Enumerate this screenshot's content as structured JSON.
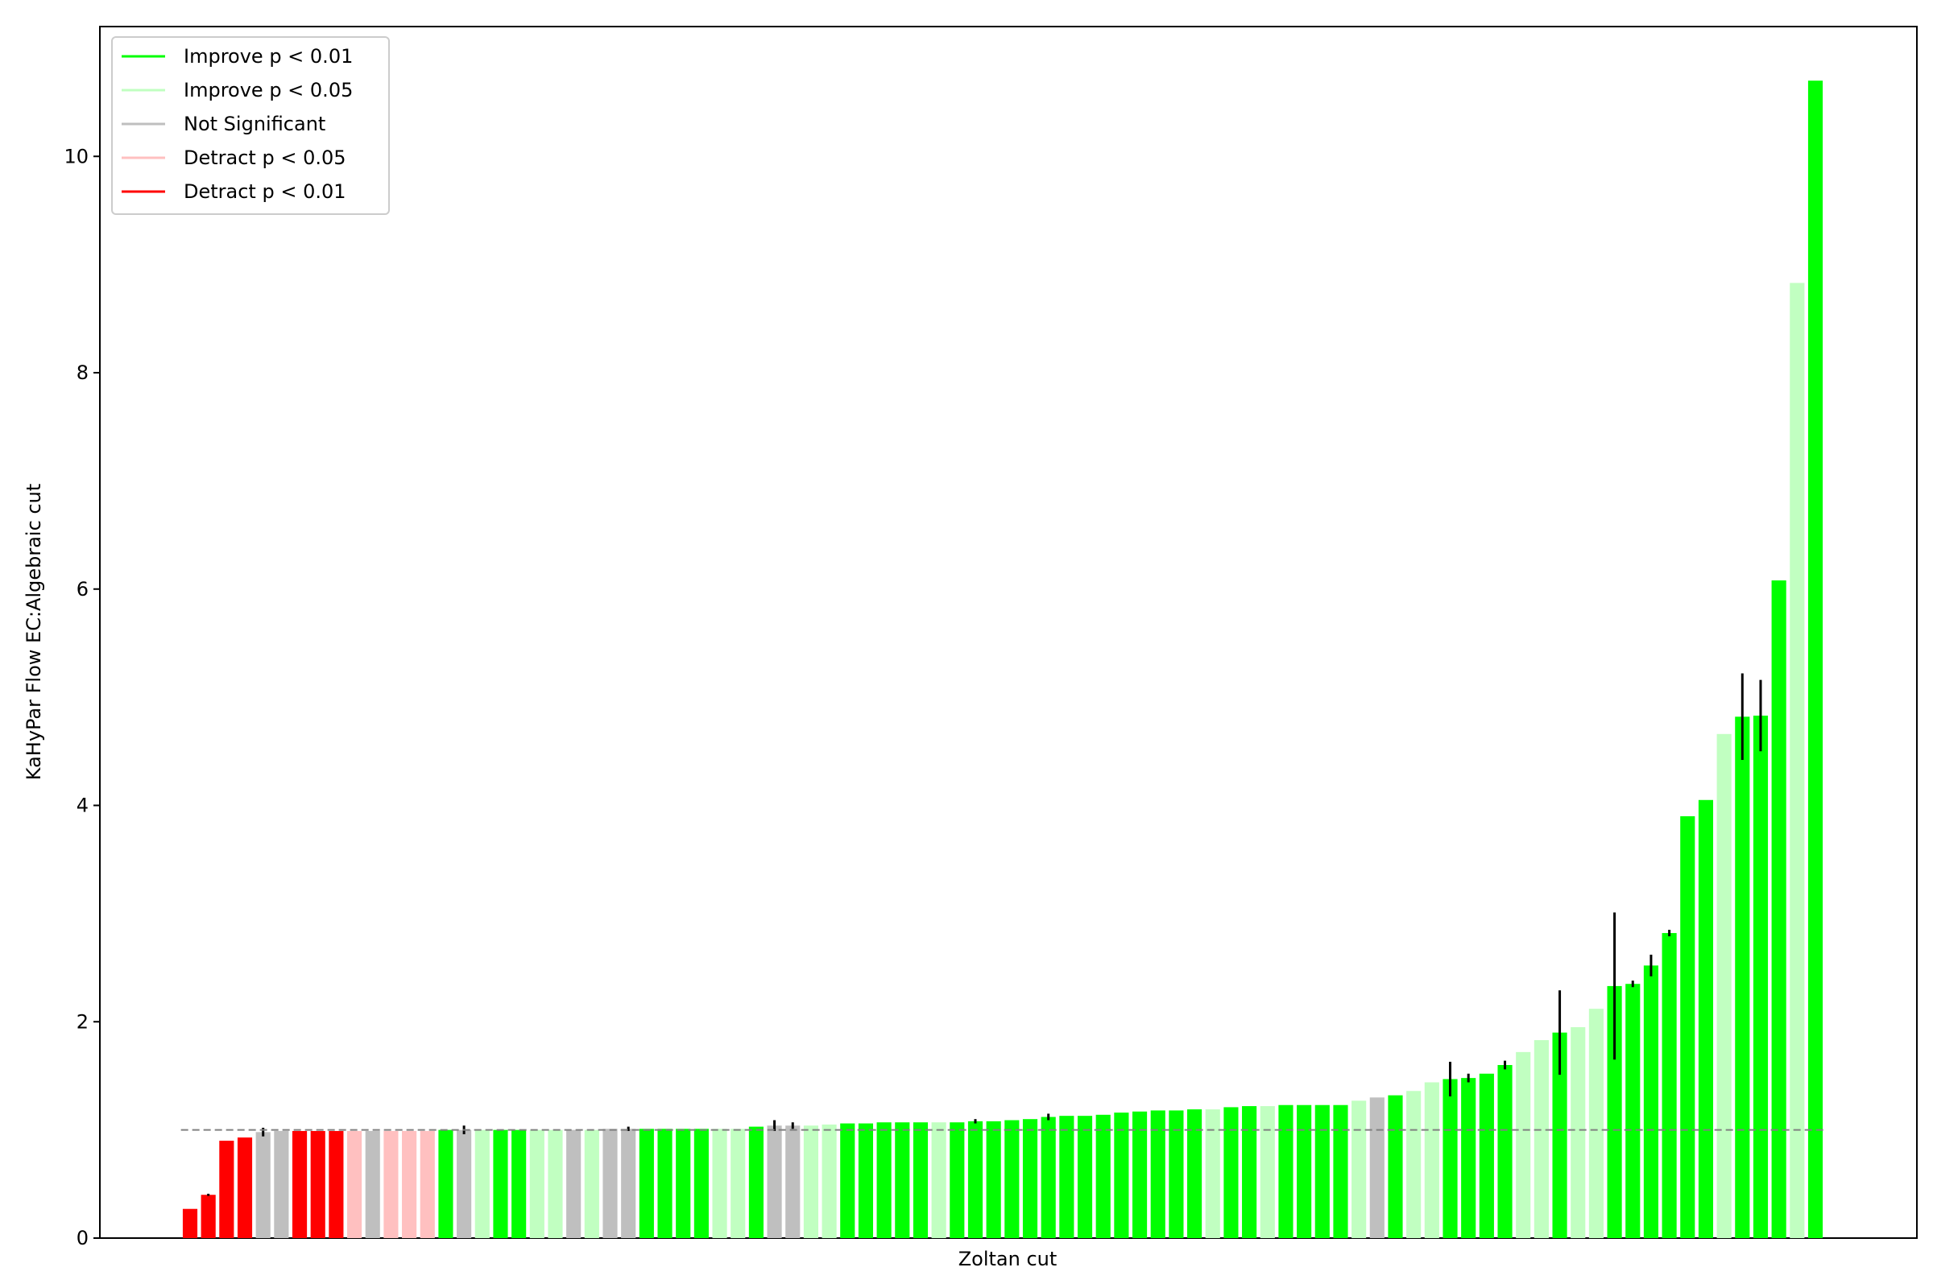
{
  "chart_data": {
    "type": "bar",
    "xlabel": "Zoltan cut",
    "ylabel": "KaHyPar Flow EC:Algebraic cut",
    "ylim": [
      0,
      11.2
    ],
    "yticks": [
      0,
      2,
      4,
      6,
      8,
      10
    ],
    "ytick_labels": [
      "0",
      "2",
      "4",
      "6",
      "8",
      "10"
    ],
    "reference_line": 1.0,
    "grid": false,
    "legend_position": "top-left",
    "legend": [
      {
        "key": "imp01",
        "label": "Improve p < 0.01",
        "color": "#00ff00"
      },
      {
        "key": "imp05",
        "label": "Improve p < 0.05",
        "color": "#c1ffc1"
      },
      {
        "key": "ns",
        "label": "Not Significant",
        "color": "#bfbfbf"
      },
      {
        "key": "det05",
        "label": "Detract p < 0.05",
        "color": "#ffc0c0"
      },
      {
        "key": "det01",
        "label": "Detract p < 0.01",
        "color": "#ff0000"
      }
    ],
    "bars": [
      {
        "v": 0.27,
        "c": "det01"
      },
      {
        "v": 0.4,
        "c": "det01",
        "e": 0.01
      },
      {
        "v": 0.9,
        "c": "det01"
      },
      {
        "v": 0.93,
        "c": "det01"
      },
      {
        "v": 0.98,
        "c": "ns",
        "e": 0.04
      },
      {
        "v": 0.99,
        "c": "ns"
      },
      {
        "v": 0.99,
        "c": "det01"
      },
      {
        "v": 0.99,
        "c": "det01"
      },
      {
        "v": 0.99,
        "c": "det01"
      },
      {
        "v": 0.99,
        "c": "det05"
      },
      {
        "v": 0.99,
        "c": "ns"
      },
      {
        "v": 0.99,
        "c": "det05"
      },
      {
        "v": 0.99,
        "c": "det05"
      },
      {
        "v": 0.99,
        "c": "det05"
      },
      {
        "v": 1.0,
        "c": "imp01"
      },
      {
        "v": 1.0,
        "c": "ns",
        "e": 0.04
      },
      {
        "v": 1.0,
        "c": "imp05"
      },
      {
        "v": 1.0,
        "c": "imp01"
      },
      {
        "v": 1.0,
        "c": "imp01"
      },
      {
        "v": 1.0,
        "c": "imp05"
      },
      {
        "v": 1.0,
        "c": "imp05"
      },
      {
        "v": 1.0,
        "c": "ns"
      },
      {
        "v": 1.0,
        "c": "imp05"
      },
      {
        "v": 1.01,
        "c": "ns"
      },
      {
        "v": 1.01,
        "c": "ns",
        "e": 0.02
      },
      {
        "v": 1.01,
        "c": "imp01"
      },
      {
        "v": 1.01,
        "c": "imp01"
      },
      {
        "v": 1.01,
        "c": "imp01"
      },
      {
        "v": 1.01,
        "c": "imp01"
      },
      {
        "v": 1.01,
        "c": "imp05"
      },
      {
        "v": 1.01,
        "c": "imp05"
      },
      {
        "v": 1.03,
        "c": "imp01"
      },
      {
        "v": 1.04,
        "c": "ns",
        "e": 0.05
      },
      {
        "v": 1.04,
        "c": "ns",
        "e": 0.03
      },
      {
        "v": 1.04,
        "c": "imp05"
      },
      {
        "v": 1.05,
        "c": "imp05"
      },
      {
        "v": 1.06,
        "c": "imp01"
      },
      {
        "v": 1.06,
        "c": "imp01"
      },
      {
        "v": 1.07,
        "c": "imp01"
      },
      {
        "v": 1.07,
        "c": "imp01"
      },
      {
        "v": 1.07,
        "c": "imp01"
      },
      {
        "v": 1.07,
        "c": "imp05"
      },
      {
        "v": 1.07,
        "c": "imp01"
      },
      {
        "v": 1.08,
        "c": "imp01",
        "e": 0.02
      },
      {
        "v": 1.08,
        "c": "imp01"
      },
      {
        "v": 1.09,
        "c": "imp01"
      },
      {
        "v": 1.1,
        "c": "imp01"
      },
      {
        "v": 1.12,
        "c": "imp01",
        "e": 0.03
      },
      {
        "v": 1.13,
        "c": "imp01"
      },
      {
        "v": 1.13,
        "c": "imp01"
      },
      {
        "v": 1.14,
        "c": "imp01"
      },
      {
        "v": 1.16,
        "c": "imp01"
      },
      {
        "v": 1.17,
        "c": "imp01"
      },
      {
        "v": 1.18,
        "c": "imp01"
      },
      {
        "v": 1.18,
        "c": "imp01"
      },
      {
        "v": 1.19,
        "c": "imp01"
      },
      {
        "v": 1.19,
        "c": "imp05"
      },
      {
        "v": 1.21,
        "c": "imp01"
      },
      {
        "v": 1.22,
        "c": "imp01"
      },
      {
        "v": 1.22,
        "c": "imp05"
      },
      {
        "v": 1.23,
        "c": "imp01"
      },
      {
        "v": 1.23,
        "c": "imp01"
      },
      {
        "v": 1.23,
        "c": "imp01"
      },
      {
        "v": 1.23,
        "c": "imp01"
      },
      {
        "v": 1.27,
        "c": "imp05"
      },
      {
        "v": 1.3,
        "c": "ns"
      },
      {
        "v": 1.32,
        "c": "imp01"
      },
      {
        "v": 1.36,
        "c": "imp05"
      },
      {
        "v": 1.44,
        "c": "imp05"
      },
      {
        "v": 1.47,
        "c": "imp01",
        "e": 0.16
      },
      {
        "v": 1.48,
        "c": "imp01",
        "e": 0.04
      },
      {
        "v": 1.52,
        "c": "imp01"
      },
      {
        "v": 1.6,
        "c": "imp01",
        "e": 0.04
      },
      {
        "v": 1.72,
        "c": "imp05"
      },
      {
        "v": 1.83,
        "c": "imp05"
      },
      {
        "v": 1.9,
        "c": "imp01",
        "e": 0.39
      },
      {
        "v": 1.95,
        "c": "imp05"
      },
      {
        "v": 2.12,
        "c": "imp05"
      },
      {
        "v": 2.33,
        "c": "imp01",
        "e": 0.68
      },
      {
        "v": 2.35,
        "c": "imp01",
        "e": 0.03
      },
      {
        "v": 2.52,
        "c": "imp01",
        "e": 0.1
      },
      {
        "v": 2.82,
        "c": "imp01",
        "e": 0.03
      },
      {
        "v": 3.9,
        "c": "imp01"
      },
      {
        "v": 4.05,
        "c": "imp01"
      },
      {
        "v": 4.66,
        "c": "imp05"
      },
      {
        "v": 4.82,
        "c": "imp01",
        "e": 0.4
      },
      {
        "v": 4.83,
        "c": "imp01",
        "e": 0.33
      },
      {
        "v": 6.08,
        "c": "imp01"
      },
      {
        "v": 8.83,
        "c": "imp05"
      },
      {
        "v": 10.7,
        "c": "imp01"
      }
    ]
  }
}
